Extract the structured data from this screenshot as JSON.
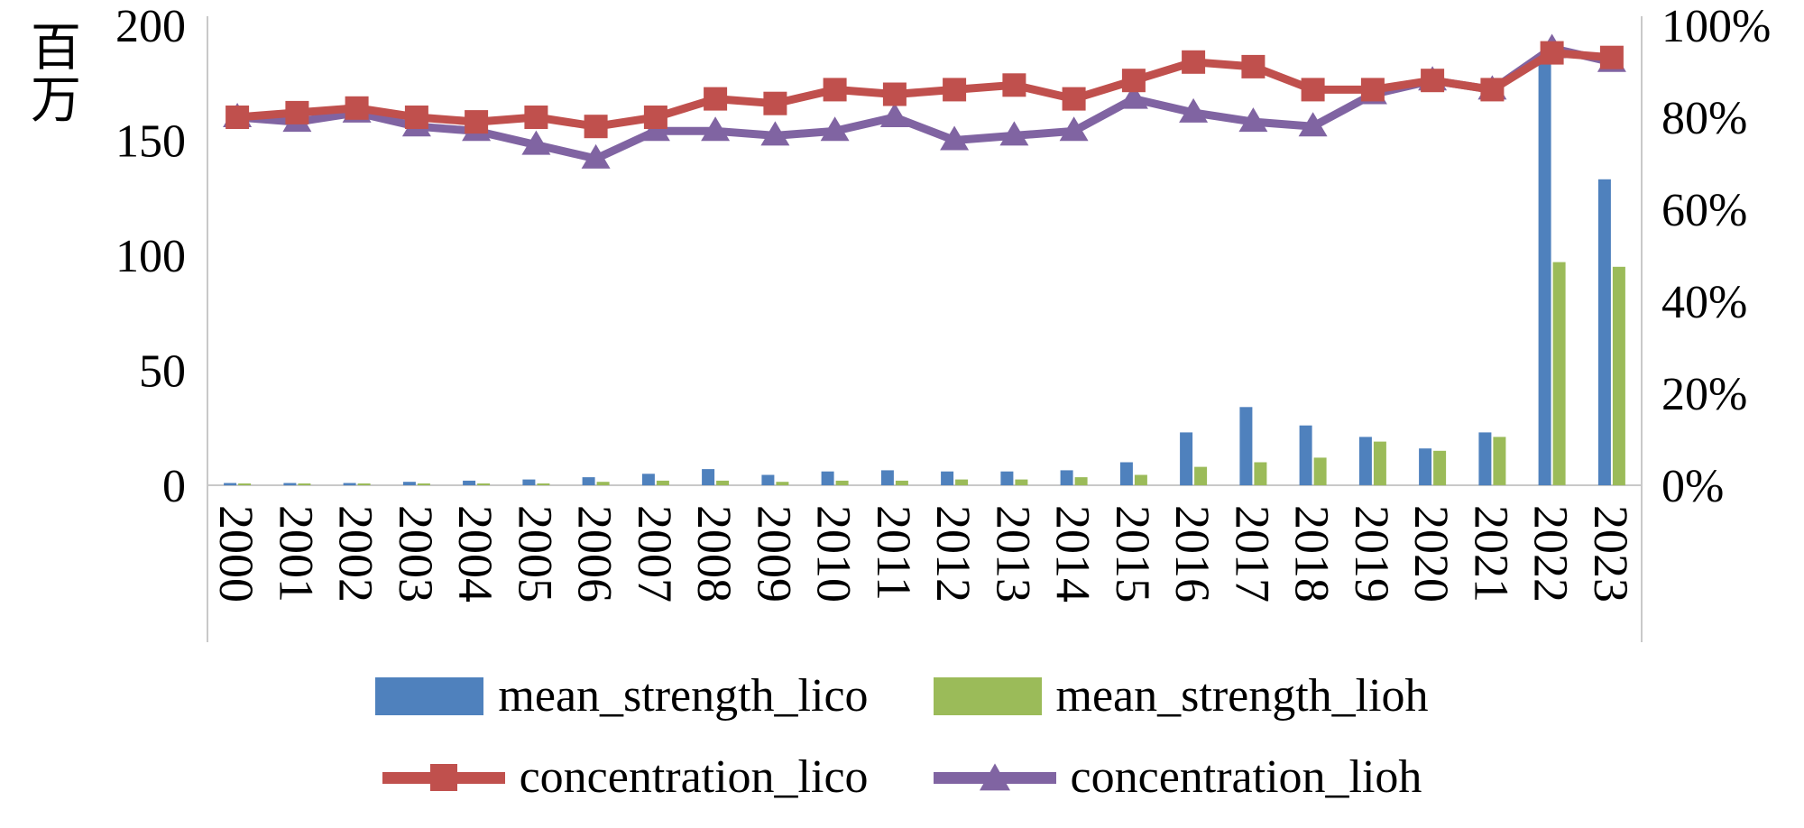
{
  "figure": {
    "background": "#ffffff"
  },
  "chart_data": {
    "type": "bar+line combo",
    "title": "",
    "grid": false,
    "legend_position": "bottom",
    "categories": [
      "2000",
      "2001",
      "2002",
      "2003",
      "2004",
      "2005",
      "2006",
      "2007",
      "2008",
      "2009",
      "2010",
      "2011",
      "2012",
      "2013",
      "2014",
      "2015",
      "2016",
      "2017",
      "2018",
      "2019",
      "2020",
      "2021",
      "2022",
      "2023"
    ],
    "left_axis": {
      "label": "百万",
      "min": 0,
      "max": 200,
      "ticks": [
        0,
        50,
        100,
        150,
        200
      ],
      "tick_labels": [
        "0",
        "50",
        "100",
        "150",
        "200"
      ]
    },
    "right_axis": {
      "label": "",
      "min": 0,
      "max": 100,
      "ticks": [
        0,
        20,
        40,
        60,
        80,
        100
      ],
      "tick_labels": [
        "0%",
        "20%",
        "40%",
        "60%",
        "80%",
        "100%"
      ]
    },
    "series": [
      {
        "name": "mean_strength_lico",
        "type": "bar",
        "axis": "left",
        "color": "#4F81BD",
        "values": [
          1,
          1,
          1,
          1.5,
          2,
          2.5,
          3.5,
          5,
          7,
          4.5,
          6,
          6.5,
          6,
          6,
          6.5,
          10,
          23,
          34,
          26,
          21,
          16,
          23,
          186,
          133
        ]
      },
      {
        "name": "mean_strength_lioh",
        "type": "bar",
        "axis": "left",
        "color": "#9BBB59",
        "values": [
          0.3,
          0.3,
          0.4,
          0.5,
          0.6,
          0.8,
          1.5,
          2,
          2,
          1.5,
          2,
          2,
          2.5,
          2.5,
          3.5,
          4.5,
          8,
          10,
          12,
          19,
          15,
          21,
          97,
          95
        ]
      },
      {
        "name": "concentration_lico",
        "type": "line",
        "marker": "square",
        "axis": "right",
        "color": "#C0504D",
        "values": [
          80,
          81,
          82,
          80,
          79,
          80,
          78,
          80,
          84,
          83,
          86,
          85,
          86,
          87,
          84,
          88,
          92,
          91,
          86,
          86,
          88,
          86,
          94,
          93
        ]
      },
      {
        "name": "concentration_lioh",
        "type": "line",
        "marker": "triangle",
        "axis": "right",
        "color": "#8064A2",
        "values": [
          80,
          79,
          81,
          78,
          77,
          74,
          71,
          77,
          77,
          76,
          77,
          80,
          75,
          76,
          77,
          84,
          81,
          79,
          78,
          85,
          88,
          86,
          95,
          92
        ]
      }
    ]
  }
}
